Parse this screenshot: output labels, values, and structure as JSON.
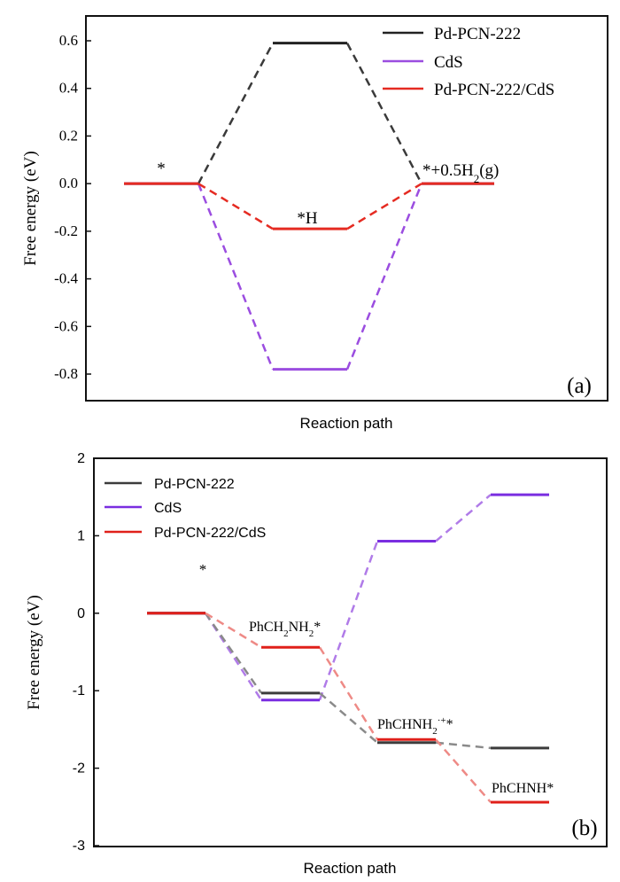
{
  "chart_data": [
    {
      "type": "line",
      "panel": "(a)",
      "xlabel": "Reaction path",
      "ylabel": "Free energy (eV)",
      "ylim": [
        -0.9,
        0.7
      ],
      "yticks": [
        -0.8,
        -0.6,
        -0.4,
        -0.2,
        0.0,
        0.2,
        0.4,
        0.6
      ],
      "ytick_labels": [
        "-0.8",
        "-0.6",
        "-0.4",
        "-0.2",
        "0.0",
        "0.2",
        "0.4",
        "0.6"
      ],
      "states": [
        "*",
        "*H",
        "*+0.5H2(g)"
      ],
      "series": [
        {
          "name": "Pd-PCN-222",
          "color": "#222222",
          "dash_color": "#3a3a3a",
          "values": [
            0.0,
            0.59,
            0.0
          ]
        },
        {
          "name": "CdS",
          "color": "#9b4de0",
          "dash_color": "#9b4de0",
          "values": [
            0.0,
            -0.78,
            0.0
          ]
        },
        {
          "name": "Pd-PCN-222/CdS",
          "color": "#e52b22",
          "dash_color": "#e52b22",
          "values": [
            0.0,
            -0.19,
            0.0
          ]
        }
      ],
      "labels": {
        "star": "*",
        "H": "*H",
        "final_prefix": "*+0.5H",
        "final_sub": "2",
        "final_suffix": "(g)"
      }
    },
    {
      "type": "line",
      "panel": "(b)",
      "xlabel": "Reaction path",
      "ylabel": "Free energy (eV)",
      "ylim": [
        -3,
        2
      ],
      "yticks": [
        -3,
        -2,
        -1,
        0,
        1,
        2
      ],
      "ytick_labels": [
        "-3",
        "-2",
        "-1",
        "0",
        "1",
        "2"
      ],
      "states": [
        "*",
        "PhCH2NH2*",
        "PhCHNH2+*",
        "PhCHNH*"
      ],
      "series": [
        {
          "name": "Pd-PCN-222",
          "color": "#3c3c3c",
          "dash_color": "#8a8a8a",
          "values": [
            0.0,
            -1.03,
            -1.67,
            -1.74
          ]
        },
        {
          "name": "CdS",
          "color": "#7a2ee0",
          "dash_color": "#b07be8",
          "values": [
            0.0,
            -1.12,
            0.93,
            1.53
          ]
        },
        {
          "name": "Pd-PCN-222/CdS",
          "color": "#e0201a",
          "dash_color": "#ee8a86",
          "values": [
            0.0,
            -0.44,
            -1.63,
            -2.44
          ]
        }
      ],
      "labels": {
        "star": "*",
        "s1_a": "PhCH",
        "s1_b": "2",
        "s1_c": "NH",
        "s1_d": "2",
        "s1_e": "*",
        "s2_a": "PhCHNH",
        "s2_b": "2",
        "s2_c": "·+",
        "s2_d": "*",
        "s3": "PhCHNH*"
      }
    }
  ]
}
